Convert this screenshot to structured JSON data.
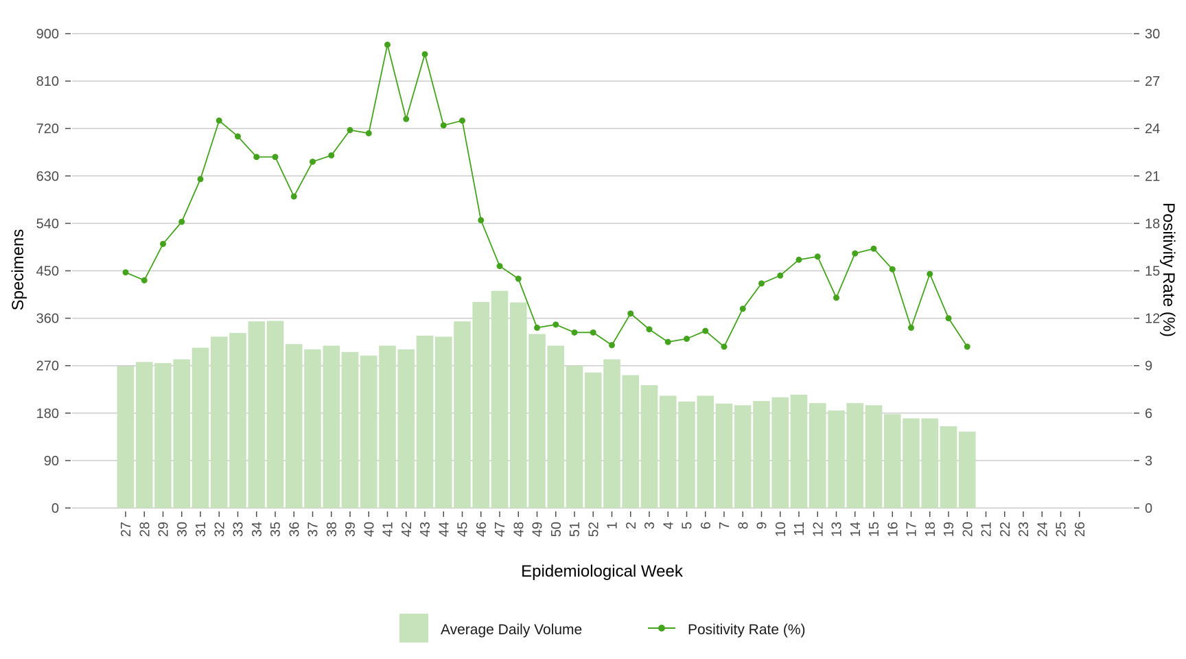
{
  "colors": {
    "bar": "#c7e3bb",
    "line": "#44a31c",
    "grid": "#cccccc",
    "tick_text": "#4d4d4d"
  },
  "chart_data": {
    "type": "bar+line",
    "xlabel": "Epidemiological Week",
    "ylabel_left": "Specimens",
    "ylabel_right": "Positivity Rate (%)",
    "categories": [
      "27",
      "28",
      "29",
      "30",
      "31",
      "32",
      "33",
      "34",
      "35",
      "36",
      "37",
      "38",
      "39",
      "40",
      "41",
      "42",
      "43",
      "44",
      "45",
      "46",
      "47",
      "48",
      "49",
      "50",
      "51",
      "52",
      "1",
      "2",
      "3",
      "4",
      "5",
      "6",
      "7",
      "8",
      "9",
      "10",
      "11",
      "12",
      "13",
      "14",
      "15",
      "16",
      "17",
      "18",
      "19",
      "20",
      "21",
      "22",
      "23",
      "24",
      "25",
      "26"
    ],
    "ylim_left": [
      0,
      900
    ],
    "yticks_left": [
      0,
      90,
      180,
      270,
      360,
      450,
      540,
      630,
      720,
      810,
      900
    ],
    "ylim_right": [
      0,
      30
    ],
    "yticks_right": [
      0,
      3,
      6,
      9,
      12,
      15,
      18,
      21,
      24,
      27,
      30
    ],
    "grid": true,
    "legend_position": "bottom",
    "series": [
      {
        "name": "Average Daily Volume",
        "type": "bar",
        "axis": "left",
        "values": [
          269,
          277,
          275,
          282,
          304,
          325,
          332,
          354,
          355,
          311,
          301,
          308,
          296,
          289,
          308,
          301,
          327,
          325,
          354,
          391,
          412,
          390,
          330,
          308,
          270,
          257,
          282,
          252,
          233,
          213,
          202,
          213,
          198,
          195,
          203,
          210,
          215,
          199,
          185,
          199,
          195,
          178,
          170,
          170,
          155,
          145,
          null,
          null,
          null,
          null,
          null,
          null
        ]
      },
      {
        "name": "Positivity Rate (%)",
        "type": "line",
        "axis": "right",
        "values": [
          14.9,
          14.4,
          16.7,
          18.1,
          20.8,
          24.5,
          23.5,
          22.2,
          22.2,
          19.7,
          21.9,
          22.3,
          23.9,
          23.7,
          29.3,
          24.6,
          28.7,
          24.2,
          24.5,
          18.2,
          15.3,
          14.5,
          11.4,
          11.6,
          11.1,
          11.1,
          10.3,
          12.3,
          11.3,
          10.5,
          10.7,
          11.2,
          10.2,
          12.6,
          14.2,
          14.7,
          15.7,
          15.9,
          13.3,
          16.1,
          16.4,
          15.1,
          11.4,
          14.8,
          12.0,
          10.2,
          null,
          null,
          null,
          null,
          null,
          null
        ]
      }
    ]
  }
}
